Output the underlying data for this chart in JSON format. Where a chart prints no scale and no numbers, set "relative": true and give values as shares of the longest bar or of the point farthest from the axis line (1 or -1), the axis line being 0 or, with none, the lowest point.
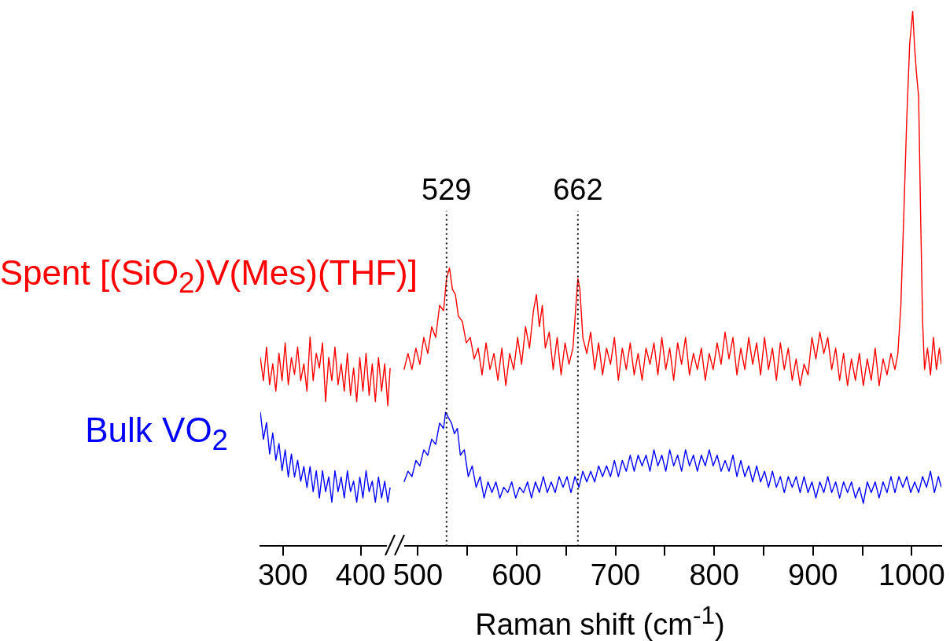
{
  "chart_data": [
    {
      "type": "line",
      "relative": true,
      "xlim": [
        271,
        447
      ],
      "xticks": [
        300,
        400
      ],
      "marker": "none",
      "line_style": "solid",
      "series": [
        {
          "name": "Spent [(SiO$_{2}$)V(Mes)(THF)]",
          "color": "#ff0000",
          "x": [
            271,
            275,
            279,
            283,
            287,
            291,
            295,
            299,
            303,
            307,
            311,
            315,
            319,
            323,
            327,
            331,
            335,
            339,
            343,
            347,
            351,
            355,
            359,
            363,
            367,
            371,
            375,
            379,
            383,
            387,
            391,
            395,
            399,
            403,
            407,
            411,
            415,
            419,
            423,
            427,
            431,
            435,
            438
          ],
          "values": [
            0.9,
            0.79,
            0.95,
            0.77,
            0.87,
            0.74,
            0.92,
            0.79,
            0.97,
            0.77,
            0.9,
            0.82,
            0.95,
            0.79,
            0.87,
            0.74,
            1,
            0.79,
            0.92,
            0.85,
            0.97,
            0.69,
            0.9,
            0.79,
            0.95,
            0.77,
            0.87,
            0.74,
            0.92,
            0.72,
            0.85,
            0.69,
            0.9,
            0.74,
            0.92,
            0.72,
            0.87,
            0.69,
            0.9,
            0.74,
            0.87,
            0.67,
            0.85
          ]
        },
        {
          "name": "Bulk VO$_{2}$",
          "color": "#0000ff",
          "x": [
            271,
            275,
            279,
            283,
            287,
            291,
            295,
            299,
            303,
            307,
            311,
            315,
            319,
            323,
            327,
            331,
            335,
            339,
            343,
            347,
            351,
            355,
            359,
            363,
            367,
            371,
            375,
            379,
            383,
            387,
            391,
            395,
            399,
            403,
            407,
            411,
            415,
            419,
            423,
            427,
            431,
            435,
            438
          ],
          "values": [
            0.64,
            0.51,
            0.59,
            0.44,
            0.54,
            0.41,
            0.49,
            0.36,
            0.46,
            0.33,
            0.44,
            0.33,
            0.41,
            0.31,
            0.38,
            0.28,
            0.38,
            0.26,
            0.36,
            0.23,
            0.36,
            0.26,
            0.33,
            0.21,
            0.36,
            0.26,
            0.33,
            0.23,
            0.36,
            0.26,
            0.31,
            0.21,
            0.33,
            0.23,
            0.36,
            0.26,
            0.31,
            0.21,
            0.33,
            0.23,
            0.31,
            0.21,
            0.28
          ]
        }
      ]
    },
    {
      "type": "line",
      "relative": true,
      "xlim": [
        479,
        1030
      ],
      "xticks": [
        500,
        {
          "value": 550,
          "label": null
        },
        600,
        {
          "value": 650,
          "label": null
        },
        700,
        {
          "value": 750,
          "label": null
        },
        800,
        {
          "value": 850,
          "label": null
        },
        900,
        {
          "value": 950,
          "label": null
        },
        1000
      ],
      "xlabel": "Raman shift (cm$^{-1}$)",
      "marker": "none",
      "line_style": "solid",
      "ref_lines": [
        {
          "axis": "x",
          "value": 529,
          "label": "529",
          "line_style": "dotted",
          "color": "#000000"
        },
        {
          "axis": "x",
          "value": 662,
          "label": "662",
          "line_style": "dotted",
          "color": "#000000"
        }
      ],
      "series": [
        {
          "color": "#ff0000",
          "x": [
            486,
            490,
            494,
            498,
            502,
            506,
            510,
            514,
            518,
            522,
            526,
            529,
            532,
            535,
            538,
            541,
            545,
            549,
            553,
            557,
            561,
            565,
            569,
            573,
            577,
            581,
            585,
            589,
            593,
            597,
            601,
            605,
            609,
            613,
            617,
            620,
            623,
            626,
            629,
            633,
            637,
            641,
            645,
            649,
            653,
            657,
            660,
            662,
            664,
            667,
            671,
            675,
            679,
            683,
            687,
            691,
            695,
            699,
            703,
            707,
            711,
            715,
            719,
            723,
            727,
            731,
            735,
            739,
            743,
            747,
            751,
            755,
            759,
            763,
            767,
            771,
            775,
            779,
            783,
            787,
            791,
            795,
            799,
            803,
            807,
            811,
            815,
            819,
            823,
            827,
            831,
            835,
            839,
            843,
            847,
            851,
            855,
            859,
            863,
            867,
            871,
            875,
            879,
            883,
            887,
            891,
            895,
            899,
            903,
            907,
            911,
            915,
            919,
            923,
            927,
            931,
            935,
            939,
            943,
            947,
            951,
            955,
            959,
            963,
            967,
            971,
            975,
            979,
            983,
            986,
            989,
            992,
            995,
            998,
            1001,
            1003,
            1005,
            1007,
            1009,
            1011,
            1013,
            1016,
            1019,
            1022,
            1025,
            1028,
            1030
          ],
          "values": [
            0.33,
            0.36,
            0.33,
            0.37,
            0.34,
            0.39,
            0.36,
            0.41,
            0.39,
            0.45,
            0.44,
            0.5,
            0.52,
            0.48,
            0.47,
            0.43,
            0.42,
            0.38,
            0.39,
            0.35,
            0.37,
            0.32,
            0.38,
            0.33,
            0.36,
            0.31,
            0.37,
            0.3,
            0.36,
            0.33,
            0.39,
            0.34,
            0.41,
            0.37,
            0.44,
            0.47,
            0.41,
            0.45,
            0.37,
            0.4,
            0.33,
            0.39,
            0.32,
            0.38,
            0.34,
            0.37,
            0.45,
            0.5,
            0.48,
            0.39,
            0.36,
            0.4,
            0.33,
            0.38,
            0.32,
            0.37,
            0.34,
            0.39,
            0.31,
            0.37,
            0.33,
            0.38,
            0.32,
            0.36,
            0.31,
            0.37,
            0.34,
            0.38,
            0.32,
            0.39,
            0.33,
            0.37,
            0.31,
            0.38,
            0.34,
            0.39,
            0.32,
            0.36,
            0.33,
            0.37,
            0.31,
            0.36,
            0.33,
            0.38,
            0.34,
            0.4,
            0.35,
            0.39,
            0.32,
            0.37,
            0.33,
            0.39,
            0.34,
            0.38,
            0.32,
            0.39,
            0.33,
            0.37,
            0.31,
            0.38,
            0.33,
            0.37,
            0.31,
            0.35,
            0.3,
            0.34,
            0.32,
            0.39,
            0.35,
            0.4,
            0.36,
            0.39,
            0.33,
            0.37,
            0.31,
            0.36,
            0.3,
            0.35,
            0.31,
            0.36,
            0.3,
            0.35,
            0.31,
            0.37,
            0.3,
            0.35,
            0.32,
            0.36,
            0.33,
            0.36,
            0.45,
            0.62,
            0.8,
            0.94,
            1.0,
            0.93,
            0.88,
            0.84,
            0.62,
            0.42,
            0.33,
            0.37,
            0.32,
            0.39,
            0.33,
            0.37,
            0.34
          ]
        },
        {
          "color": "#0000ff",
          "x": [
            486,
            490,
            494,
            498,
            502,
            506,
            510,
            514,
            518,
            522,
            526,
            528,
            531,
            534,
            537,
            540,
            543,
            547,
            551,
            555,
            559,
            563,
            567,
            571,
            575,
            579,
            583,
            587,
            591,
            595,
            599,
            603,
            607,
            611,
            615,
            619,
            623,
            627,
            631,
            635,
            639,
            643,
            647,
            651,
            655,
            659,
            663,
            667,
            671,
            675,
            679,
            683,
            687,
            691,
            695,
            699,
            703,
            707,
            711,
            715,
            719,
            723,
            727,
            731,
            735,
            739,
            743,
            747,
            751,
            755,
            759,
            763,
            767,
            771,
            775,
            779,
            783,
            787,
            791,
            795,
            799,
            803,
            807,
            811,
            815,
            819,
            823,
            827,
            831,
            835,
            839,
            843,
            847,
            851,
            855,
            859,
            863,
            867,
            871,
            875,
            879,
            883,
            887,
            891,
            895,
            899,
            903,
            907,
            911,
            915,
            919,
            923,
            927,
            931,
            935,
            939,
            943,
            947,
            951,
            955,
            959,
            963,
            967,
            971,
            975,
            979,
            983,
            987,
            991,
            995,
            999,
            1003,
            1007,
            1011,
            1015,
            1019,
            1023,
            1027,
            1030
          ],
          "values": [
            0.12,
            0.14,
            0.13,
            0.16,
            0.15,
            0.18,
            0.17,
            0.2,
            0.19,
            0.23,
            0.22,
            0.25,
            0.24,
            0.23,
            0.21,
            0.22,
            0.17,
            0.18,
            0.13,
            0.15,
            0.11,
            0.13,
            0.09,
            0.12,
            0.1,
            0.12,
            0.09,
            0.11,
            0.1,
            0.12,
            0.09,
            0.11,
            0.1,
            0.12,
            0.09,
            0.12,
            0.1,
            0.13,
            0.1,
            0.12,
            0.1,
            0.13,
            0.11,
            0.13,
            0.1,
            0.13,
            0.11,
            0.14,
            0.12,
            0.14,
            0.12,
            0.15,
            0.13,
            0.15,
            0.13,
            0.16,
            0.13,
            0.16,
            0.14,
            0.17,
            0.14,
            0.17,
            0.15,
            0.17,
            0.14,
            0.18,
            0.15,
            0.17,
            0.14,
            0.18,
            0.15,
            0.17,
            0.14,
            0.18,
            0.15,
            0.17,
            0.14,
            0.17,
            0.15,
            0.18,
            0.15,
            0.17,
            0.14,
            0.16,
            0.14,
            0.17,
            0.13,
            0.16,
            0.13,
            0.15,
            0.12,
            0.15,
            0.12,
            0.14,
            0.11,
            0.14,
            0.11,
            0.13,
            0.1,
            0.13,
            0.11,
            0.13,
            0.1,
            0.13,
            0.1,
            0.12,
            0.09,
            0.12,
            0.1,
            0.13,
            0.1,
            0.12,
            0.09,
            0.12,
            0.1,
            0.12,
            0.09,
            0.11,
            0.08,
            0.12,
            0.1,
            0.12,
            0.09,
            0.12,
            0.1,
            0.13,
            0.1,
            0.13,
            0.11,
            0.13,
            0.1,
            0.12,
            0.1,
            0.13,
            0.11,
            0.14,
            0.1,
            0.13,
            0.11
          ]
        }
      ]
    }
  ]
}
